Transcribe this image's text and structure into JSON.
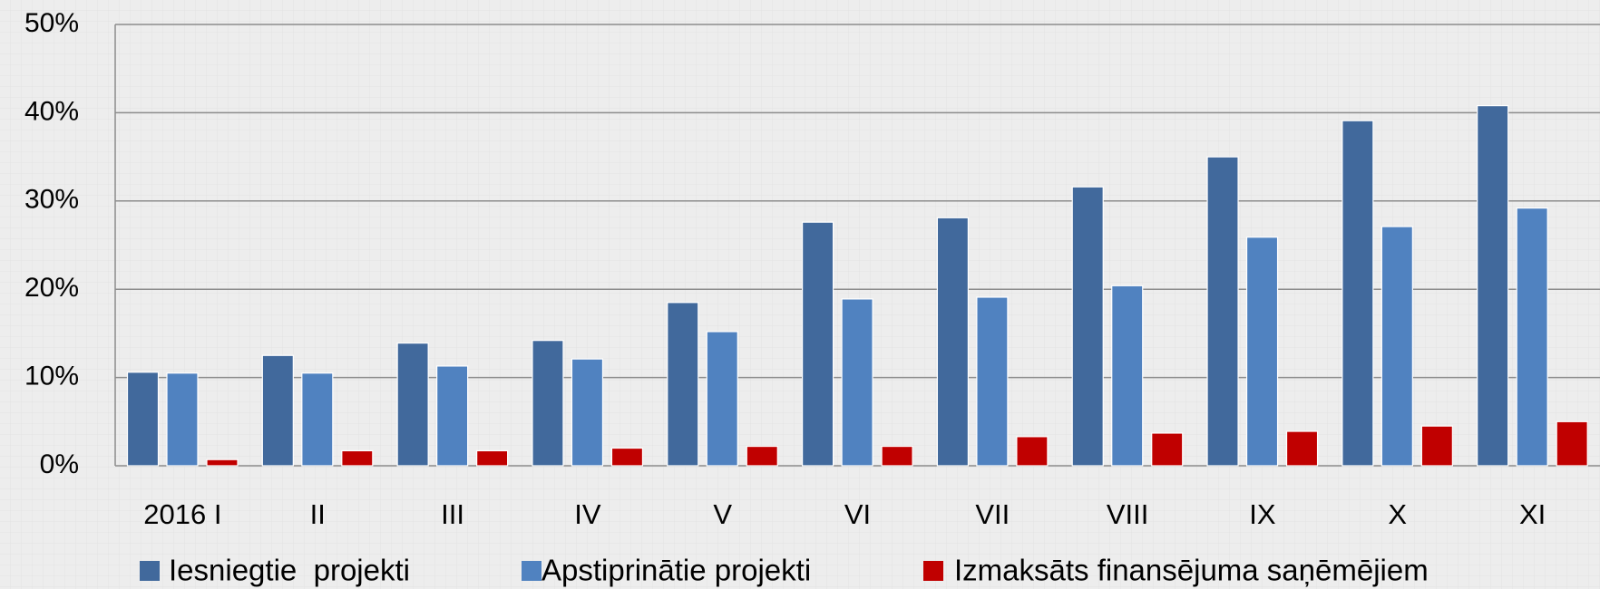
{
  "chart_data": {
    "type": "bar",
    "categories": [
      "2016 I",
      "II",
      "III",
      "IV",
      "V",
      "VI",
      "VII",
      "VIII",
      "IX",
      "X",
      "XI"
    ],
    "series": [
      {
        "name": "Iesniegtie  projekti",
        "color": "#41699c",
        "values": [
          10.6,
          12.5,
          13.9,
          14.2,
          18.5,
          27.6,
          28.1,
          31.6,
          35.0,
          39.1,
          40.8
        ]
      },
      {
        "name": "Apstiprinātie projekti",
        "color": "#5082c0",
        "values": [
          10.5,
          10.5,
          11.3,
          12.1,
          15.2,
          18.9,
          19.1,
          20.4,
          25.9,
          27.1,
          29.2
        ]
      },
      {
        "name": "Izmaksāts finansējuma saņēmējiem",
        "color": "#c00000",
        "values": [
          0.7,
          1.7,
          1.7,
          2.0,
          2.2,
          2.2,
          3.3,
          3.7,
          3.9,
          4.5,
          5.0
        ]
      }
    ],
    "ylim": [
      0,
      50
    ],
    "yticks": [
      {
        "value": 0,
        "label": "0%"
      },
      {
        "value": 10,
        "label": "10%"
      },
      {
        "value": 20,
        "label": "20%"
      },
      {
        "value": 30,
        "label": "30%"
      },
      {
        "value": 40,
        "label": "40%"
      },
      {
        "value": 50,
        "label": "50%"
      }
    ],
    "grid": true,
    "legend": "bottom"
  }
}
